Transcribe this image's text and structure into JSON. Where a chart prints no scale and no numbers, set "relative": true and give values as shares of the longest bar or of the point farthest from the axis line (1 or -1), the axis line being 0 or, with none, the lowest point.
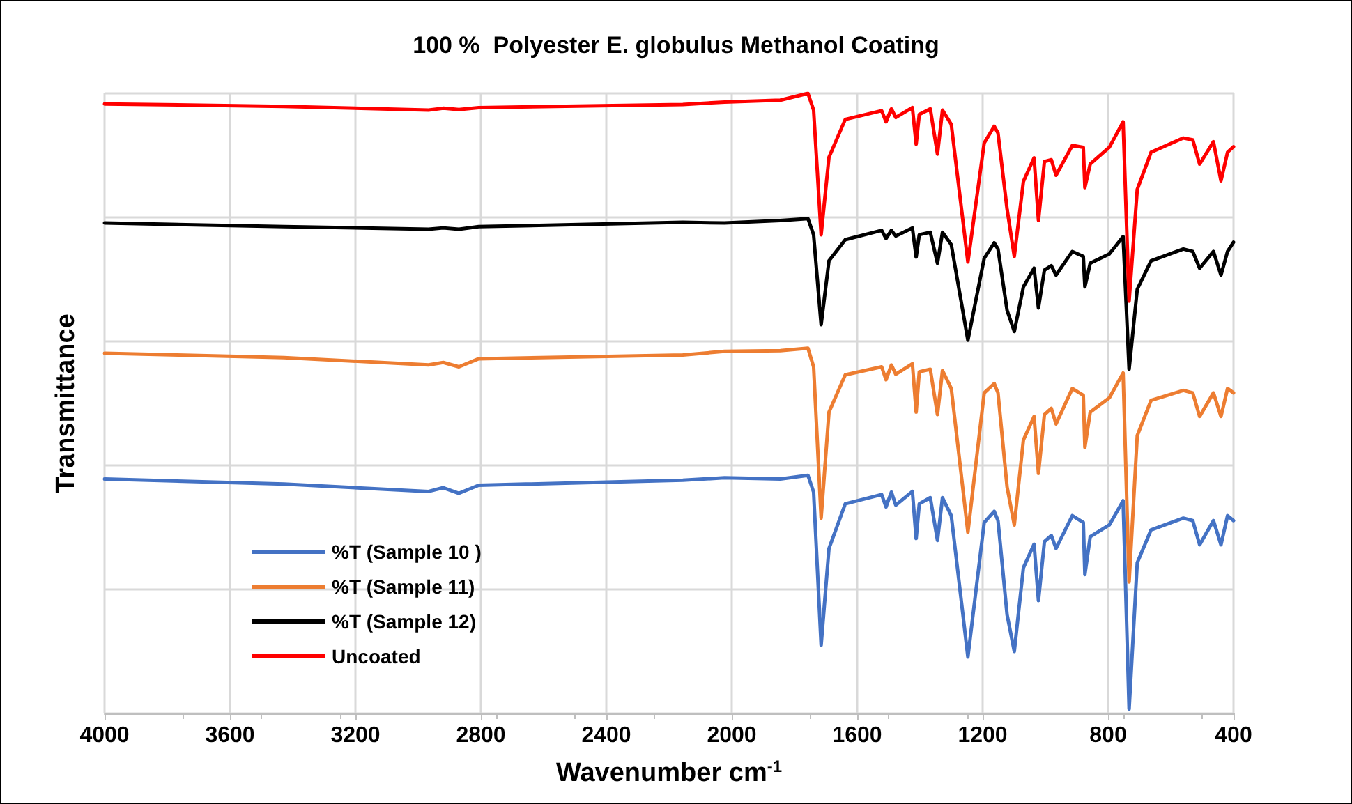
{
  "chart_data": {
    "type": "line",
    "title": "100 %  Polyester E. globulus Methanol Coating",
    "xlabel": "Wavenumber cm$^{-1}$",
    "ylabel": "Transmittance",
    "relative": true,
    "grid": true,
    "legend": "bottom left",
    "marker": "none",
    "line_style": "solid",
    "xlim": [
      4000,
      400
    ],
    "xticks": [
      4000,
      3600,
      3200,
      2800,
      2400,
      2000,
      1600,
      1200,
      800,
      400
    ],
    "x": [
      4000,
      3428,
      2967,
      2920,
      2870,
      2807,
      2156,
      2023,
      1845,
      1757,
      1739,
      1715,
      1690,
      1638,
      1522,
      1508,
      1491,
      1477,
      1424,
      1412,
      1402,
      1367,
      1344,
      1328,
      1300,
      1247,
      1195,
      1163,
      1151,
      1122,
      1099,
      1070,
      1036,
      1022,
      1003,
      981,
      966,
      914,
      879,
      874,
      857,
      796,
      752,
      733,
      707,
      663,
      560,
      530,
      508,
      464,
      440,
      419,
      400
    ],
    "series": [
      {
        "name": "%T (Sample 10 )",
        "color": "#4472c4",
        "values": [
          0.378,
          0.37,
          0.358,
          0.364,
          0.355,
          0.368,
          0.376,
          0.38,
          0.378,
          0.384,
          0.357,
          0.11,
          0.266,
          0.338,
          0.353,
          0.333,
          0.357,
          0.336,
          0.358,
          0.282,
          0.338,
          0.348,
          0.279,
          0.348,
          0.319,
          0.091,
          0.308,
          0.326,
          0.311,
          0.159,
          0.1,
          0.235,
          0.273,
          0.182,
          0.277,
          0.287,
          0.266,
          0.319,
          0.308,
          0.224,
          0.285,
          0.304,
          0.343,
          0.007,
          0.243,
          0.296,
          0.315,
          0.311,
          0.272,
          0.311,
          0.272,
          0.319,
          0.311
        ]
      },
      {
        "name": "%T (Sample 11)",
        "color": "#ed7d31",
        "values": [
          0.581,
          0.574,
          0.562,
          0.566,
          0.559,
          0.572,
          0.578,
          0.584,
          0.585,
          0.589,
          0.559,
          0.315,
          0.486,
          0.546,
          0.559,
          0.538,
          0.562,
          0.547,
          0.564,
          0.486,
          0.551,
          0.555,
          0.482,
          0.553,
          0.524,
          0.292,
          0.517,
          0.532,
          0.517,
          0.365,
          0.304,
          0.441,
          0.479,
          0.387,
          0.482,
          0.492,
          0.467,
          0.524,
          0.513,
          0.429,
          0.486,
          0.509,
          0.549,
          0.212,
          0.448,
          0.505,
          0.521,
          0.517,
          0.479,
          0.517,
          0.479,
          0.524,
          0.517
        ]
      },
      {
        "name": "%T (Sample 12)",
        "color": "#000000",
        "values": [
          0.791,
          0.785,
          0.781,
          0.783,
          0.781,
          0.785,
          0.792,
          0.791,
          0.795,
          0.798,
          0.772,
          0.627,
          0.73,
          0.764,
          0.779,
          0.766,
          0.779,
          0.77,
          0.783,
          0.736,
          0.772,
          0.776,
          0.726,
          0.776,
          0.756,
          0.602,
          0.734,
          0.759,
          0.749,
          0.65,
          0.616,
          0.688,
          0.718,
          0.654,
          0.715,
          0.722,
          0.707,
          0.745,
          0.737,
          0.688,
          0.726,
          0.741,
          0.769,
          0.555,
          0.684,
          0.73,
          0.749,
          0.745,
          0.718,
          0.745,
          0.707,
          0.745,
          0.76
        ]
      },
      {
        "name": "Uncoated",
        "color": "#ff0000",
        "values": [
          0.983,
          0.979,
          0.973,
          0.976,
          0.974,
          0.977,
          0.982,
          0.986,
          0.989,
          1.0,
          0.973,
          0.772,
          0.897,
          0.958,
          0.972,
          0.954,
          0.975,
          0.961,
          0.977,
          0.918,
          0.966,
          0.975,
          0.902,
          0.973,
          0.95,
          0.728,
          0.92,
          0.947,
          0.936,
          0.813,
          0.737,
          0.858,
          0.896,
          0.795,
          0.89,
          0.893,
          0.868,
          0.916,
          0.913,
          0.848,
          0.886,
          0.913,
          0.954,
          0.665,
          0.845,
          0.905,
          0.928,
          0.925,
          0.886,
          0.922,
          0.859,
          0.905,
          0.914
        ]
      }
    ]
  }
}
